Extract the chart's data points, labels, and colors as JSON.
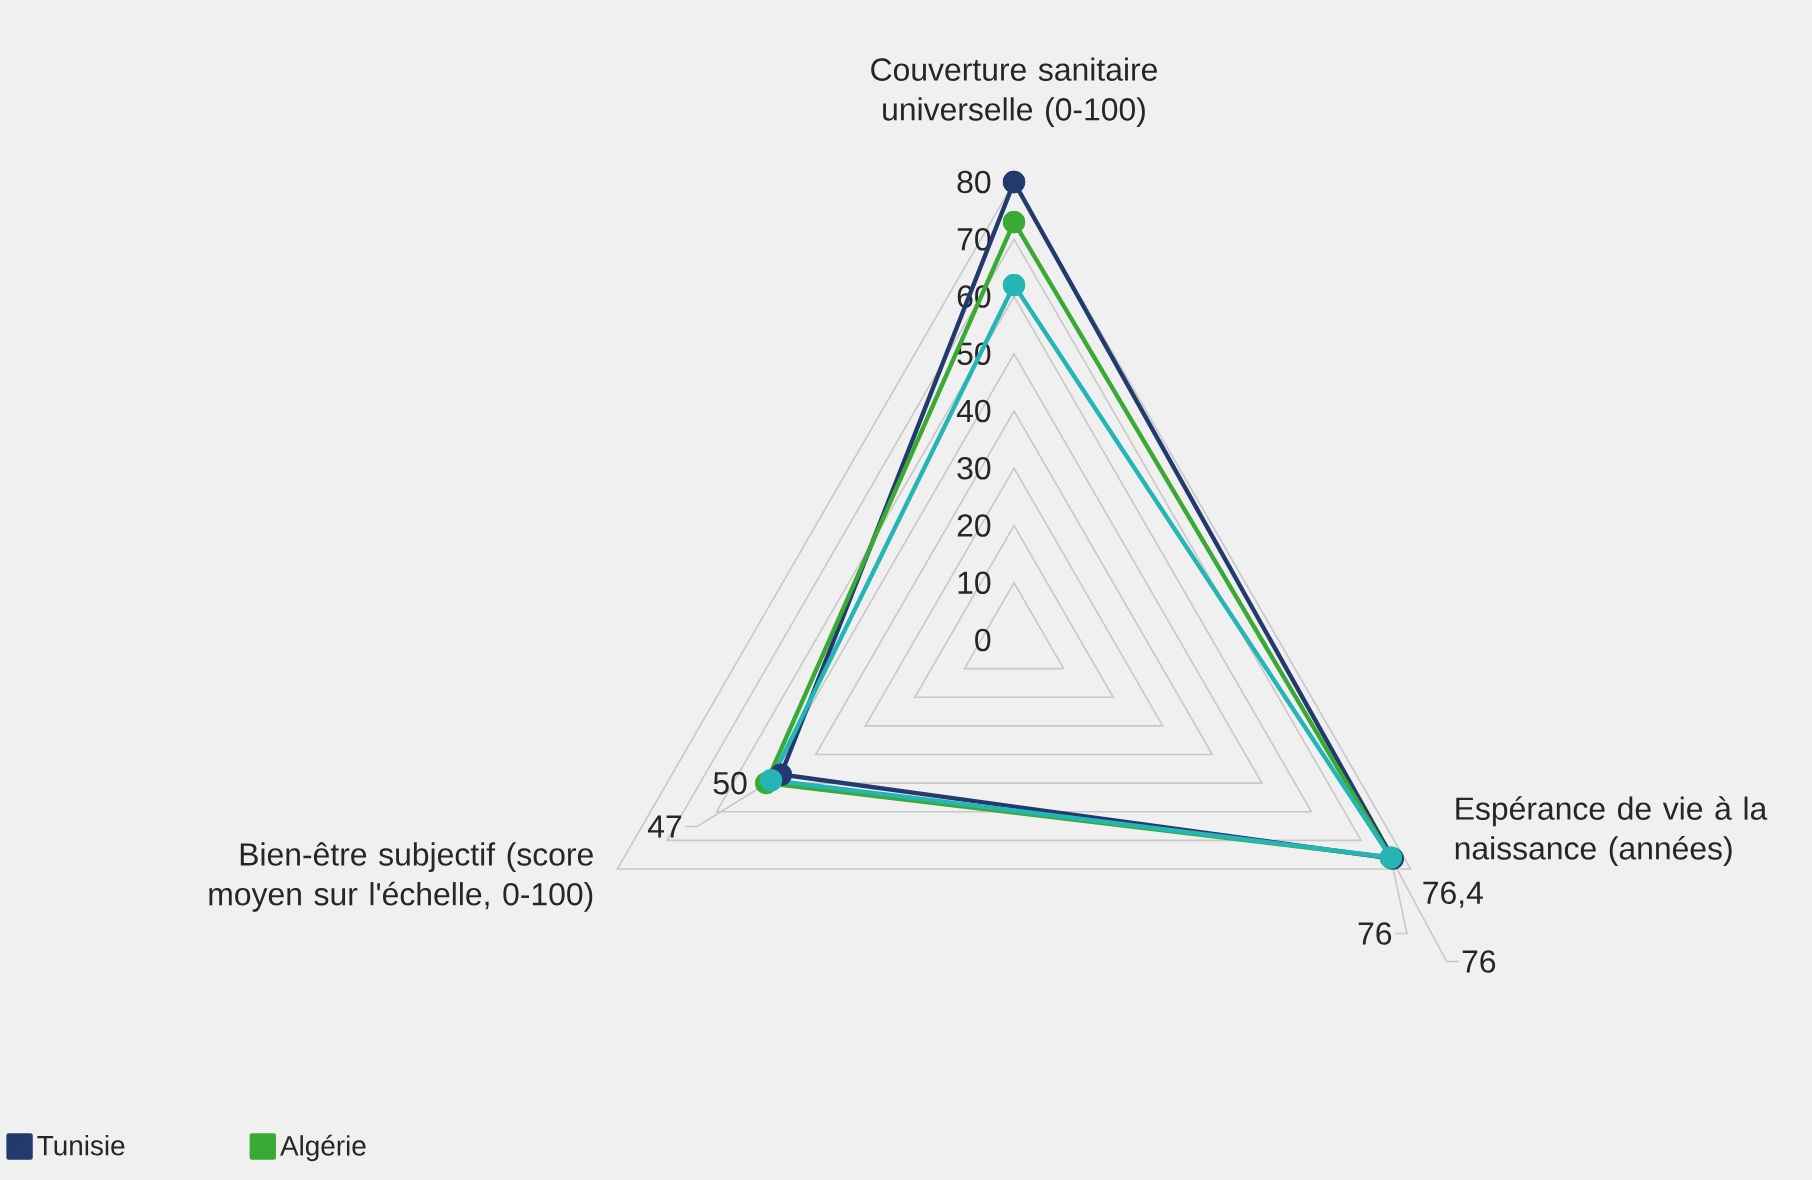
{
  "chart_data": {
    "type": "radar",
    "categories": [
      "Couverture sanitaire universelle (0-100)",
      "Espérance de vie à la naissance (années)",
      "Bien-être subjectif (score moyen sur l'échelle, 0-100)"
    ],
    "ylim": [
      0,
      80
    ],
    "yticks": [
      0,
      10,
      20,
      30,
      40,
      50,
      60,
      70,
      80
    ],
    "grid": true,
    "legend": "bottom left",
    "marker": "circle",
    "series": [
      {
        "name": "Tunisie",
        "color": "#233a6e",
        "values": [
          80,
          76.4,
          47
        ],
        "value_labels": [
          null,
          "76,4",
          "47"
        ]
      },
      {
        "name": "Algérie",
        "color": "#3aaa35",
        "values": [
          73,
          76,
          50
        ],
        "value_labels": [
          null,
          "76",
          "50"
        ]
      },
      {
        "color": "#26b5b5",
        "values": [
          62,
          76,
          49
        ],
        "value_labels": [
          null,
          "76",
          null
        ]
      }
    ]
  }
}
